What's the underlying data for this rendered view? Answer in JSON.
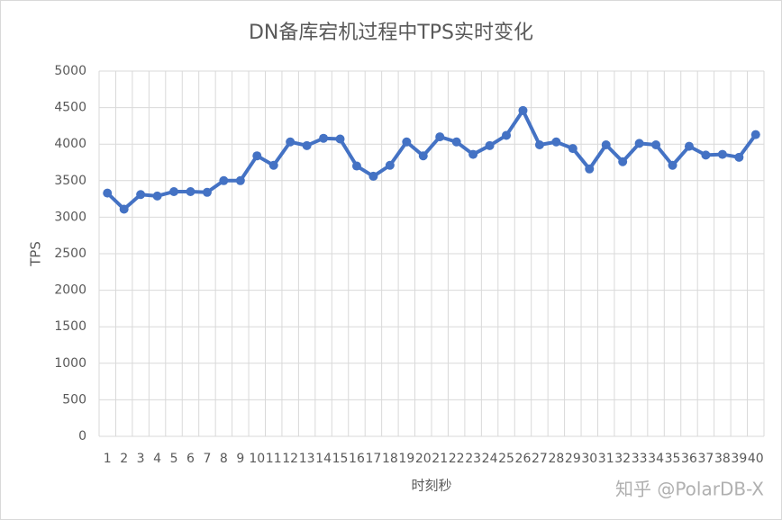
{
  "chart_data": {
    "type": "line",
    "title": "DN备库宕机过程中TPS实时变化",
    "x_label": "时刻秒",
    "y_label": "TPS",
    "watermark": "知乎 @PolarDB-X",
    "categories": [
      "1",
      "2",
      "3",
      "4",
      "5",
      "6",
      "7",
      "8",
      "9",
      "10",
      "11",
      "12",
      "13",
      "14",
      "15",
      "16",
      "17",
      "18",
      "19",
      "20",
      "21",
      "22",
      "23",
      "24",
      "25",
      "26",
      "27",
      "28",
      "29",
      "30",
      "31",
      "32",
      "33",
      "34",
      "35",
      "36",
      "37",
      "38",
      "39",
      "40"
    ],
    "series": [
      {
        "name": "TPS",
        "color": "#4472c4",
        "values": [
          3330,
          3110,
          3310,
          3290,
          3350,
          3350,
          3340,
          3500,
          3500,
          3840,
          3710,
          4030,
          3980,
          4080,
          4070,
          3700,
          3560,
          3710,
          4030,
          3840,
          4100,
          4030,
          3860,
          3980,
          4120,
          4460,
          3990,
          4030,
          3940,
          3660,
          3990,
          3760,
          4010,
          3990,
          3710,
          3970,
          3850,
          3860,
          3820,
          4130
        ]
      }
    ],
    "ylim": [
      0,
      5000
    ],
    "yticks": [
      0,
      500,
      1000,
      1500,
      2000,
      2500,
      3000,
      3500,
      4000,
      4500,
      5000
    ],
    "grid": true
  }
}
